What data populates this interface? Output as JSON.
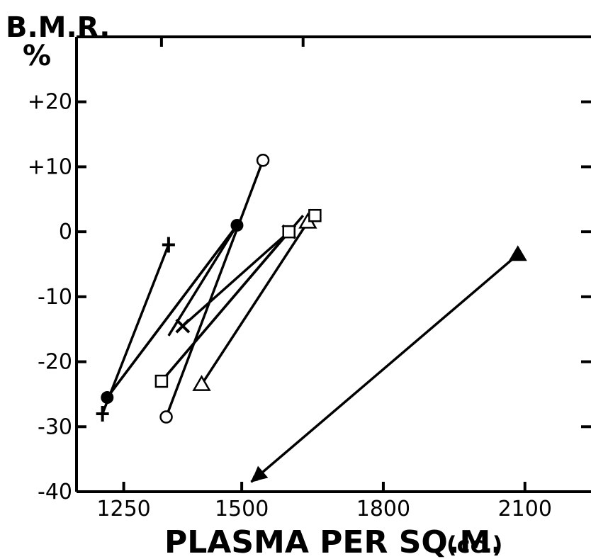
{
  "chart_data": {
    "type": "scatter",
    "title": "",
    "xlabel": "PLASMA PER SQ.M.",
    "xlabel_unit": "(cc.)",
    "ylabel": "B.M.R.",
    "ylabel_unit": "%",
    "xlim": [
      1150,
      2240
    ],
    "ylim": [
      -40,
      30
    ],
    "x_ticks": [
      {
        "value": 1250,
        "label": "1250"
      },
      {
        "value": 1500,
        "label": "1500"
      },
      {
        "value": 1800,
        "label": "1800"
      },
      {
        "value": 2100,
        "label": "2100"
      }
    ],
    "y_ticks": [
      {
        "value": 20,
        "label": "+20"
      },
      {
        "value": 10,
        "label": "+10"
      },
      {
        "value": 0,
        "label": "0"
      },
      {
        "value": -10,
        "label": "-10"
      },
      {
        "value": -20,
        "label": "-20"
      },
      {
        "value": -30,
        "label": "-30"
      },
      {
        "value": -40,
        "label": "-40"
      }
    ],
    "grid": false,
    "legend": "none",
    "series": [
      {
        "marker": "filled-circle",
        "points": [
          [
            1215,
            -25.5
          ],
          [
            1490,
            1
          ]
        ],
        "arrow": false
      },
      {
        "marker": "plus",
        "points": [
          [
            1205,
            -28
          ],
          [
            1345,
            -2
          ]
        ],
        "arrow": false
      },
      {
        "marker": "open-circle",
        "points": [
          [
            1340,
            -28.5
          ],
          [
            1545,
            11
          ]
        ],
        "arrow": false
      },
      {
        "marker": "x",
        "points": [
          [
            1375,
            -14.5
          ],
          [
            1600,
            0
          ]
        ],
        "arrow": false
      },
      {
        "marker": "open-square",
        "points": [
          [
            1330,
            -23
          ],
          [
            1600,
            0
          ]
        ],
        "arrow": false
      },
      {
        "marker": "open-triangle",
        "points": [
          [
            1415,
            -23.5
          ],
          [
            1640,
            1.5
          ]
        ],
        "arrow": false
      },
      {
        "marker": "filled-triangle",
        "points": [
          [
            2085,
            -3.5
          ],
          [
            1520,
            -38.5
          ]
        ],
        "arrow": true
      }
    ],
    "extra_segments": [
      {
        "from": [
          1215,
          -25.5
        ],
        "to": [
          1490,
          1
        ]
      },
      {
        "from": [
          1490,
          1
        ],
        "to": [
          1345,
          -16
        ]
      },
      {
        "from": [
          1630,
          2.5
        ],
        "to": [
          1330,
          -23
        ]
      }
    ],
    "extra_markers": [
      {
        "marker": "open-square",
        "point": [
          1655,
          2.5
        ]
      }
    ]
  }
}
